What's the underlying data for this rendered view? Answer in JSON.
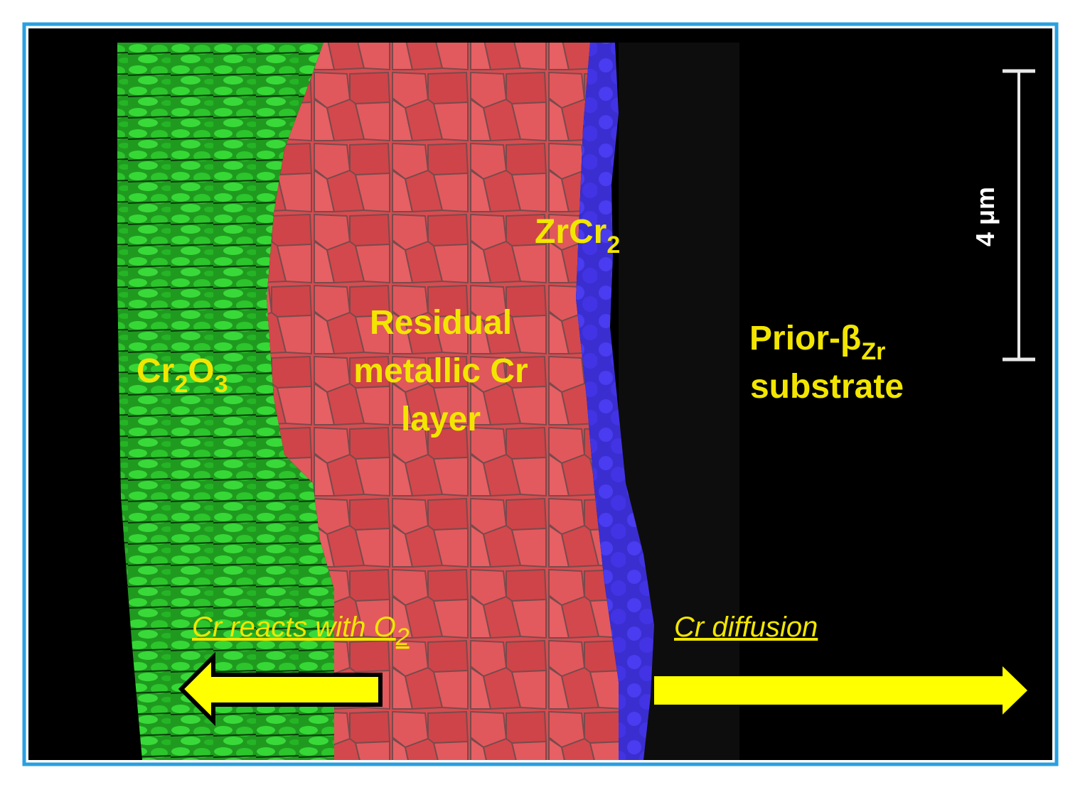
{
  "labels": {
    "oxide": [
      "Cr",
      "2",
      "O",
      "3"
    ],
    "residual": [
      "Residual",
      "metallic Cr",
      "layer"
    ],
    "intermetallic": [
      "ZrCr",
      "2"
    ],
    "substrate": [
      "Prior-β",
      "Zr",
      "substrate"
    ],
    "scale_bar": "4 μm",
    "reaction": [
      "Cr reacts with O",
      "2"
    ],
    "diffusion": "Cr diffusion"
  }
}
